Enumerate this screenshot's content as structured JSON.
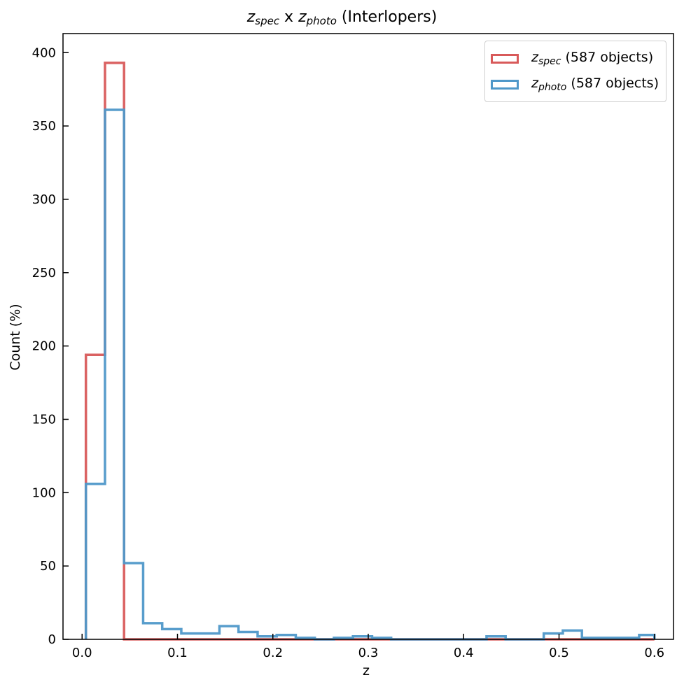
{
  "title": {
    "var1": "z",
    "sub1": "spec",
    "sep": " x ",
    "var2": "z",
    "sub2": "photo",
    "tail": " (Interlopers)"
  },
  "legend": [
    {
      "var": "z",
      "sub": "spec",
      "text": " (587 objects)",
      "color": "#d85a5a"
    },
    {
      "var": "z",
      "sub": "photo",
      "text": " (587 objects)",
      "color": "#4f98c9"
    }
  ],
  "chart_data": {
    "type": "histogram",
    "xlabel": "z",
    "ylabel": "Count (%)",
    "xlim": [
      -0.02,
      0.62
    ],
    "ylim": [
      0,
      413
    ],
    "xticks": [
      0.0,
      0.1,
      0.2,
      0.3,
      0.4,
      0.5,
      0.6
    ],
    "xticklabels": [
      "0.0",
      "0.1",
      "0.2",
      "0.3",
      "0.4",
      "0.5",
      "0.6"
    ],
    "yticks": [
      0,
      50,
      100,
      150,
      200,
      250,
      300,
      350,
      400
    ],
    "yticklabels": [
      "0",
      "50",
      "100",
      "150",
      "200",
      "250",
      "300",
      "350",
      "400"
    ],
    "series": [
      {
        "name": "z_spec (587 objects)",
        "color": "#d85a5a",
        "bin_edges": [
          0.004,
          0.024,
          0.044,
          0.064,
          0.084,
          0.104,
          0.124,
          0.144,
          0.164,
          0.184,
          0.204,
          0.224,
          0.244,
          0.264,
          0.284,
          0.304,
          0.324,
          0.344,
          0.364,
          0.384,
          0.404,
          0.424,
          0.444,
          0.464,
          0.484,
          0.504,
          0.524,
          0.544,
          0.564,
          0.584,
          0.6
        ],
        "counts": [
          194,
          393,
          0,
          0,
          0,
          0,
          0,
          0,
          0,
          0,
          0,
          0,
          0,
          0,
          0,
          0,
          0,
          0,
          0,
          0,
          0,
          0,
          0,
          0,
          0,
          0,
          0,
          0,
          0,
          0
        ]
      },
      {
        "name": "z_photo (587 objects)",
        "color": "#4f98c9",
        "bin_edges": [
          0.004,
          0.024,
          0.044,
          0.064,
          0.084,
          0.104,
          0.124,
          0.144,
          0.164,
          0.184,
          0.204,
          0.224,
          0.244,
          0.264,
          0.284,
          0.304,
          0.324,
          0.344,
          0.364,
          0.384,
          0.404,
          0.424,
          0.444,
          0.464,
          0.484,
          0.504,
          0.524,
          0.544,
          0.564,
          0.584,
          0.6
        ],
        "counts": [
          106,
          361,
          52,
          11,
          7,
          4,
          4,
          9,
          5,
          2,
          3,
          1,
          0,
          1,
          2,
          1,
          0,
          0,
          0,
          0,
          0,
          2,
          0,
          0,
          4,
          6,
          1,
          1,
          1,
          3
        ]
      }
    ],
    "grid": false,
    "legend_position": "top-right"
  }
}
